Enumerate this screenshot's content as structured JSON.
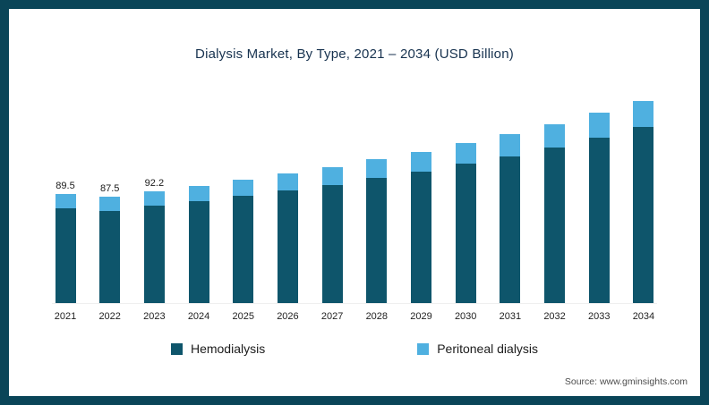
{
  "title": "Dialysis Market, By Type, 2021 – 2034 (USD Billion)",
  "source": "Source: www.gminsights.com",
  "colors": {
    "frame": "#0a4558",
    "hemodialysis": "#0e556b",
    "peritoneal_dialysis": "#4fb0e0"
  },
  "legend": [
    {
      "label": "Hemodialysis",
      "color": "#0e556b"
    },
    {
      "label": "Peritoneal dialysis",
      "color": "#4fb0e0"
    }
  ],
  "chart_data": {
    "type": "bar",
    "stacked": true,
    "title": "Dialysis Market, By Type, 2021 – 2034 (USD Billion)",
    "unit": "USD Billion",
    "categories": [
      "2021",
      "2022",
      "2023",
      "2024",
      "2025",
      "2026",
      "2027",
      "2028",
      "2029",
      "2030",
      "2031",
      "2032",
      "2033",
      "2034"
    ],
    "series": [
      {
        "name": "Hemodialysis",
        "color": "#0e556b",
        "values": [
          77.9,
          76.1,
          80.2,
          84.0,
          88.3,
          92.7,
          97.4,
          102.7,
          108.3,
          114.4,
          120.9,
          128.3,
          136.2,
          144.9
        ]
      },
      {
        "name": "Peritoneal dialysis",
        "color": "#4fb0e0",
        "values": [
          11.6,
          11.4,
          12.0,
          12.5,
          13.2,
          13.8,
          14.6,
          15.3,
          16.2,
          17.1,
          18.1,
          19.2,
          20.3,
          21.6
        ]
      }
    ],
    "totals": [
      89.5,
      87.5,
      92.2,
      96.5,
      101.5,
      106.5,
      112.0,
      118.0,
      124.5,
      131.5,
      139.0,
      147.5,
      156.5,
      166.5
    ],
    "value_labels": [
      "89.5",
      "87.5",
      "92.2",
      "",
      "",
      "",
      "",
      "",
      "",
      "",
      "",
      "",
      "",
      ""
    ],
    "ylim": [
      0,
      180
    ],
    "grid": false,
    "legend_position": "bottom"
  }
}
